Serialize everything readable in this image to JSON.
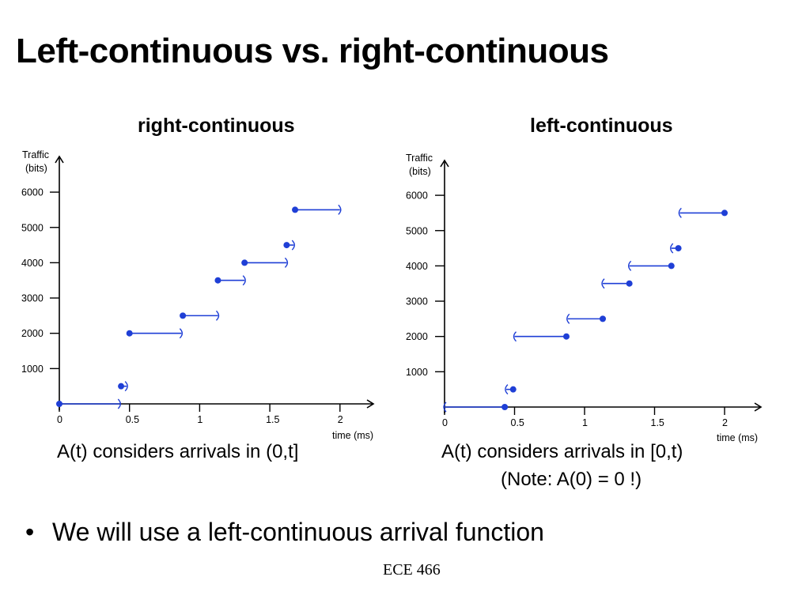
{
  "title": "Left-continuous vs. right-continuous",
  "bullet": {
    "marker": "•",
    "text": "We will use a left-continuous arrival function"
  },
  "footer": "ECE 466",
  "colors": {
    "series": "#1f3fd6",
    "axis": "#000000"
  },
  "chart_data": [
    {
      "type": "line",
      "title": "right-continuous",
      "ylabel_line1": "Traffic",
      "ylabel_line2": "(bits)",
      "xlabel": "time (ms)",
      "xlim": [
        0,
        2.2
      ],
      "ylim": [
        0,
        6500
      ],
      "xticks": [
        0,
        0.5,
        1,
        1.5,
        2
      ],
      "xtick_labels": [
        "0",
        "0.5",
        "1",
        "1.5",
        "2"
      ],
      "yticks": [
        1000,
        2000,
        3000,
        4000,
        5000,
        6000
      ],
      "ytick_labels": [
        "1000",
        "2000",
        "3000",
        "4000",
        "5000",
        "6000"
      ],
      "grid": false,
      "closed_end": "left",
      "segments": [
        {
          "x_start": 0,
          "x_end": 0.43,
          "y": 0
        },
        {
          "x_start": 0.44,
          "x_end": 0.48,
          "y": 500
        },
        {
          "x_start": 0.5,
          "x_end": 0.87,
          "y": 2000
        },
        {
          "x_start": 0.88,
          "x_end": 1.13,
          "y": 2500
        },
        {
          "x_start": 1.13,
          "x_end": 1.32,
          "y": 3500
        },
        {
          "x_start": 1.32,
          "x_end": 1.62,
          "y": 4000
        },
        {
          "x_start": 1.62,
          "x_end": 1.67,
          "y": 4500
        },
        {
          "x_start": 1.68,
          "x_end": 2.0,
          "y": 5500
        }
      ],
      "caption": "A(t) considers arrivals in (0,t]"
    },
    {
      "type": "line",
      "title": "left-continuous",
      "ylabel_line1": "Traffic",
      "ylabel_line2": "(bits)",
      "xlabel": "time (ms)",
      "xlim": [
        0,
        2.2
      ],
      "ylim": [
        0,
        6500
      ],
      "xticks": [
        0,
        0.5,
        1,
        1.5,
        2
      ],
      "xtick_labels": [
        "0",
        "0.5",
        "1",
        "1.5",
        "2"
      ],
      "yticks": [
        1000,
        2000,
        3000,
        4000,
        5000,
        6000
      ],
      "ytick_labels": [
        "1000",
        "2000",
        "3000",
        "4000",
        "5000",
        "6000"
      ],
      "grid": false,
      "closed_end": "right",
      "segments": [
        {
          "x_start": 0,
          "x_end": 0.43,
          "y": 0
        },
        {
          "x_start": 0.44,
          "x_end": 0.49,
          "y": 500
        },
        {
          "x_start": 0.5,
          "x_end": 0.87,
          "y": 2000
        },
        {
          "x_start": 0.88,
          "x_end": 1.13,
          "y": 2500
        },
        {
          "x_start": 1.13,
          "x_end": 1.32,
          "y": 3500
        },
        {
          "x_start": 1.32,
          "x_end": 1.62,
          "y": 4000
        },
        {
          "x_start": 1.62,
          "x_end": 1.67,
          "y": 4500
        },
        {
          "x_start": 1.68,
          "x_end": 2.0,
          "y": 5500
        }
      ],
      "caption": "A(t) considers arrivals in [0,t)",
      "note": "(Note: A(0) = 0 !)"
    }
  ]
}
